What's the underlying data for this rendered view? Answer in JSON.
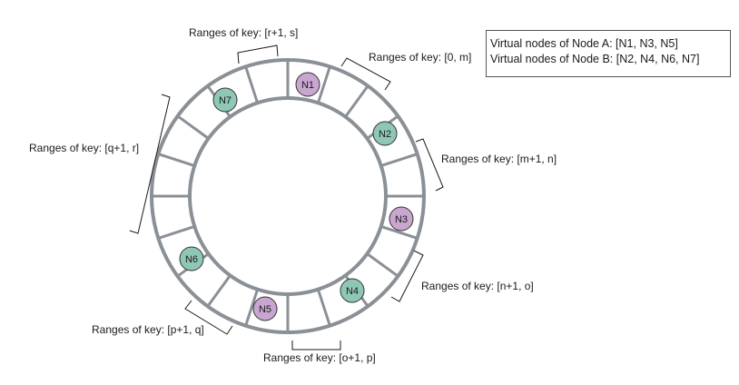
{
  "legend": {
    "node_a": "Virtual nodes of Node A: [N1, N3, N5]",
    "node_b": "Virtual nodes of Node B: [N2, N4, N6, N7]"
  },
  "colors": {
    "node_a_fill": "#c8a6cf",
    "node_b_fill": "#8fc7b6",
    "ring_stroke": "#8a9096"
  },
  "nodes": [
    {
      "id": "N1",
      "group": "A"
    },
    {
      "id": "N2",
      "group": "B"
    },
    {
      "id": "N3",
      "group": "A"
    },
    {
      "id": "N4",
      "group": "B"
    },
    {
      "id": "N5",
      "group": "A"
    },
    {
      "id": "N6",
      "group": "B"
    },
    {
      "id": "N7",
      "group": "B"
    }
  ],
  "ranges": {
    "r_s": "Ranges of key: [r+1, s]",
    "zero_m": "Ranges of key: [0, m]",
    "m_n": "Ranges of key: [m+1, n]",
    "n_o": "Ranges of key: [n+1, o]",
    "o_p": "Ranges of key: [o+1, p]",
    "p_q": "Ranges of key: [p+1, q]",
    "q_r": "Ranges of key: [q+1, r]"
  }
}
